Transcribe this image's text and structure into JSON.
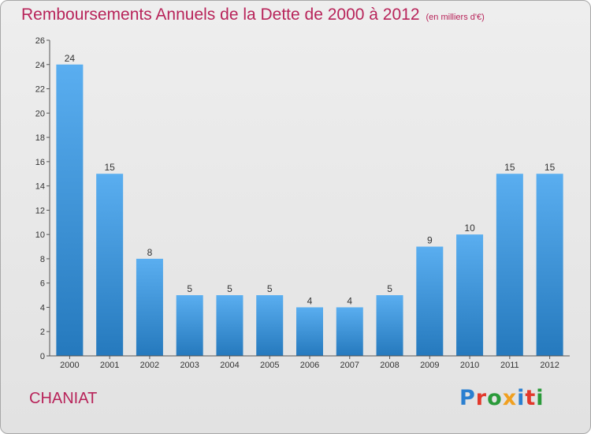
{
  "title": "Remboursements Annuels de la Dette de 2000 à 2012",
  "unit": "(en milliers d'€)",
  "commune": "CHANIAT",
  "logo_text": "Proxiti",
  "colors": {
    "title": "#b8245a",
    "bar_top": "#5aaef0",
    "bar_bottom": "#2579bd",
    "logo": [
      "#2a7fd0",
      "#e2382b",
      "#2a9a3a",
      "#f0a020",
      "#2a7fd0",
      "#e2382b",
      "#2a9a3a"
    ]
  },
  "chart_data": {
    "type": "bar",
    "categories": [
      "2000",
      "2001",
      "2002",
      "2003",
      "2004",
      "2005",
      "2006",
      "2007",
      "2008",
      "2009",
      "2010",
      "2011",
      "2012"
    ],
    "values": [
      24,
      15,
      8,
      5,
      5,
      5,
      4,
      4,
      5,
      9,
      10,
      15,
      15
    ],
    "title": "Remboursements Annuels de la Dette de 2000 à 2012",
    "ylim": [
      0,
      26
    ],
    "yticks": [
      0,
      2,
      4,
      6,
      8,
      10,
      12,
      14,
      16,
      18,
      20,
      22,
      24,
      26
    ],
    "grid": false,
    "legend": "none"
  }
}
